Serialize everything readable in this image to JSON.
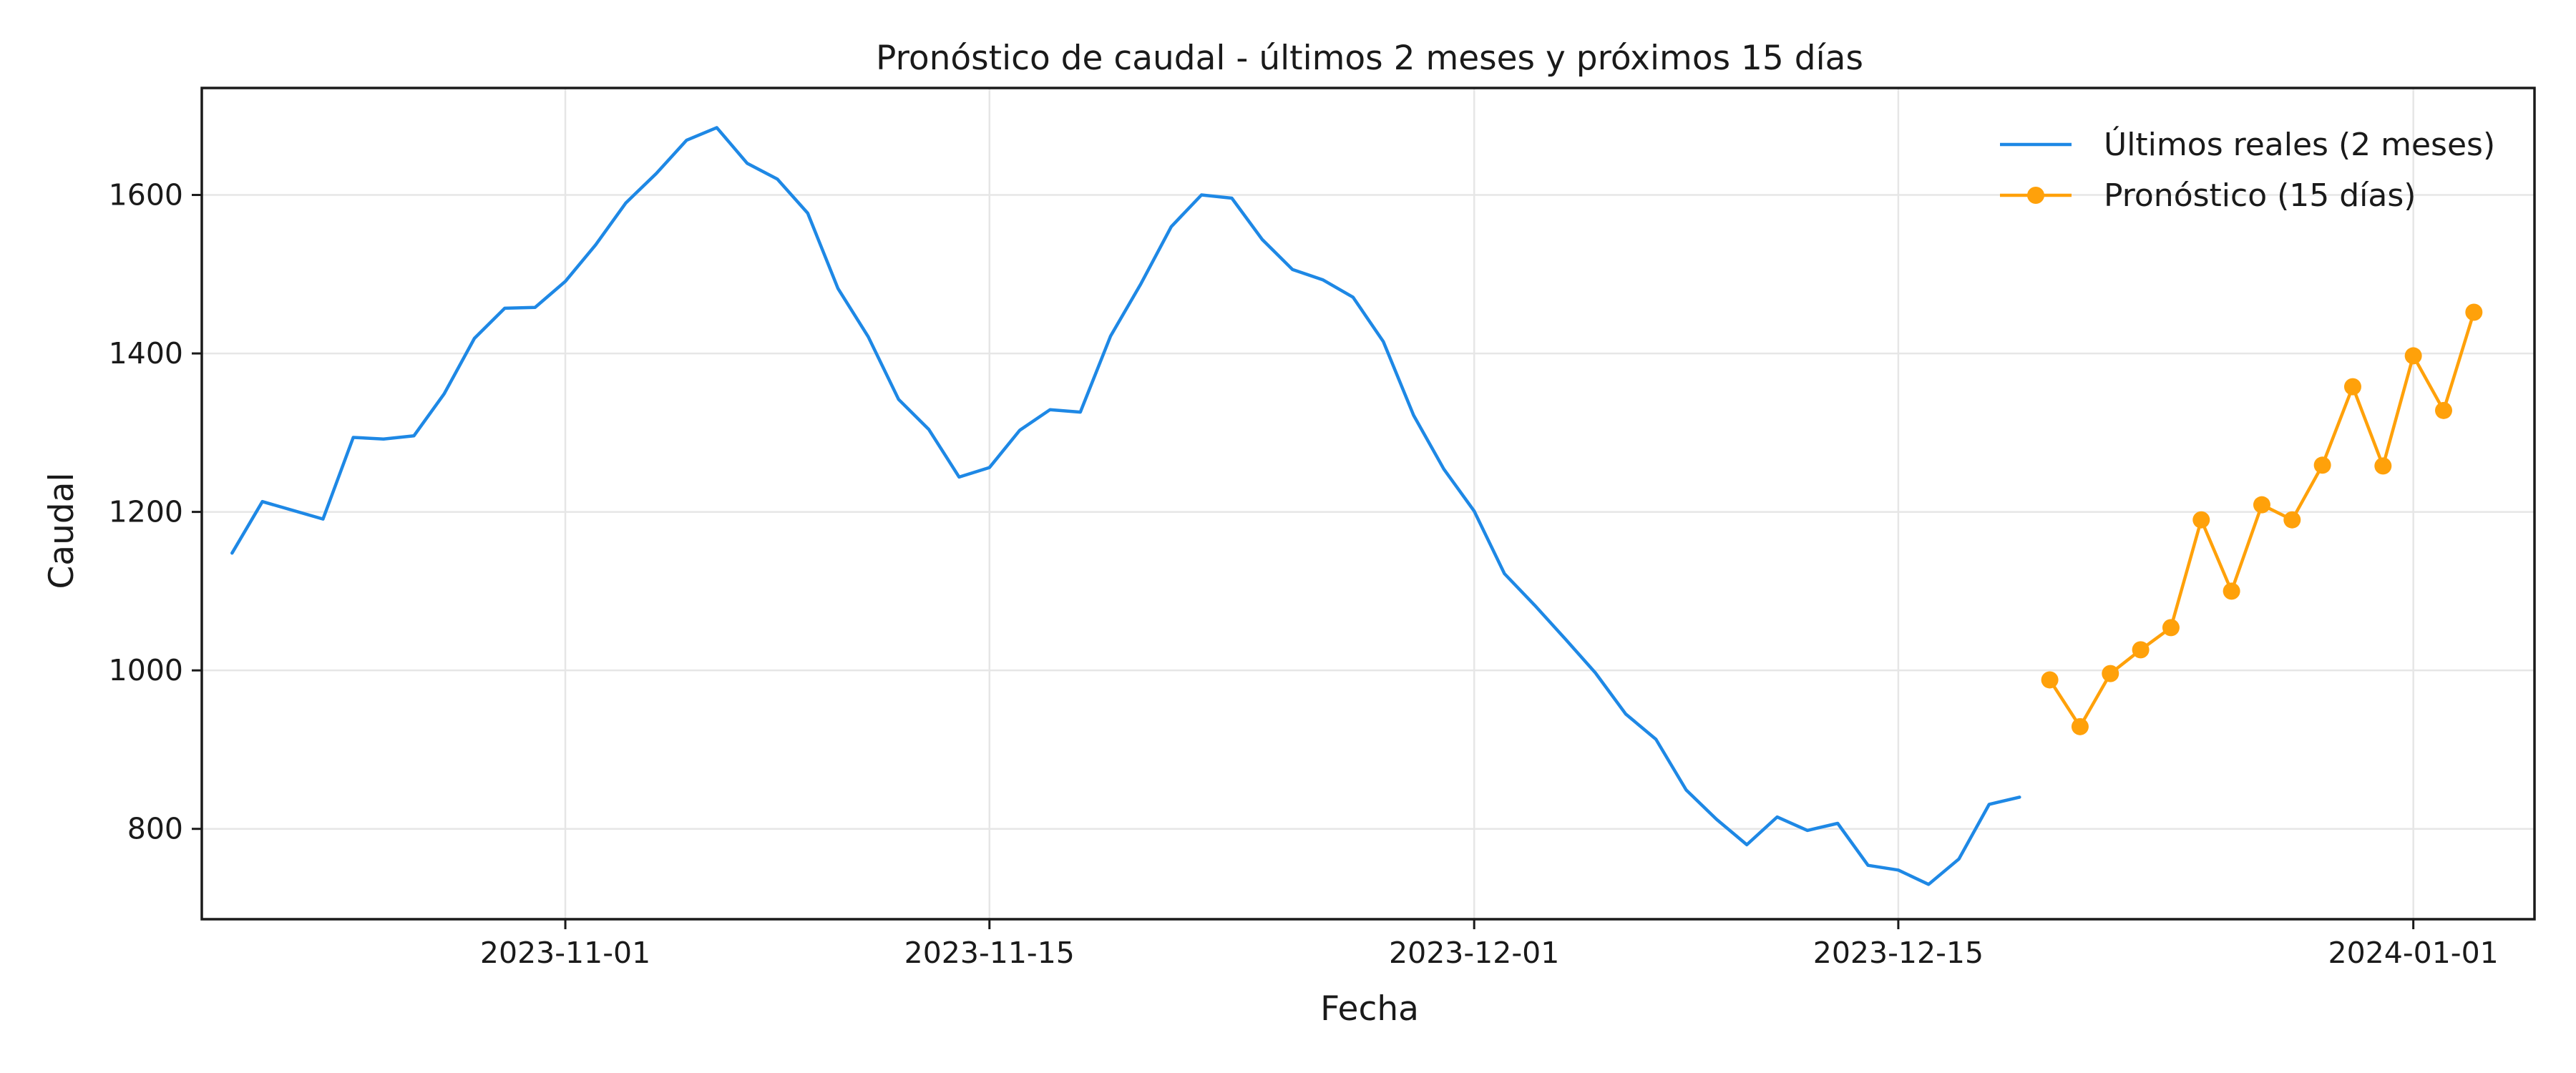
{
  "chart_data": {
    "type": "line",
    "title": "Pronóstico de caudal - últimos 2 meses y próximos 15 días",
    "xlabel": "Fecha",
    "ylabel": "Caudal",
    "x_axis_type": "date",
    "xlim": [
      "2023-10-20",
      "2024-01-05"
    ],
    "ylim": [
      686,
      1735
    ],
    "x_ticks": [
      "2023-11-01",
      "2023-11-15",
      "2023-12-01",
      "2023-12-15",
      "2024-01-01"
    ],
    "y_ticks": [
      800,
      1000,
      1200,
      1400,
      1600
    ],
    "grid": true,
    "legend_position": "top-right",
    "series": [
      {
        "name": "Últimos reales (2 meses)",
        "color": "#1e88e5",
        "marker": "none",
        "x": [
          "2023-10-21",
          "2023-10-22",
          "2023-10-23",
          "2023-10-24",
          "2023-10-25",
          "2023-10-26",
          "2023-10-27",
          "2023-10-28",
          "2023-10-29",
          "2023-10-30",
          "2023-10-31",
          "2023-11-01",
          "2023-11-02",
          "2023-11-03",
          "2023-11-04",
          "2023-11-05",
          "2023-11-06",
          "2023-11-07",
          "2023-11-08",
          "2023-11-09",
          "2023-11-10",
          "2023-11-11",
          "2023-11-12",
          "2023-11-13",
          "2023-11-14",
          "2023-11-15",
          "2023-11-16",
          "2023-11-17",
          "2023-11-18",
          "2023-11-19",
          "2023-11-20",
          "2023-11-21",
          "2023-11-22",
          "2023-11-23",
          "2023-11-24",
          "2023-11-25",
          "2023-11-26",
          "2023-11-27",
          "2023-11-28",
          "2023-11-29",
          "2023-11-30",
          "2023-12-01",
          "2023-12-02",
          "2023-12-03",
          "2023-12-04",
          "2023-12-05",
          "2023-12-06",
          "2023-12-07",
          "2023-12-08",
          "2023-12-09",
          "2023-12-10",
          "2023-12-11",
          "2023-12-12",
          "2023-12-13",
          "2023-12-14",
          "2023-12-15",
          "2023-12-16",
          "2023-12-17",
          "2023-12-18",
          "2023-12-19"
        ],
        "values": [
          1148,
          1213,
          1202,
          1191,
          1294,
          1292,
          1296,
          1349,
          1419,
          1457,
          1458,
          1491,
          1537,
          1590,
          1627,
          1669,
          1685,
          1640,
          1620,
          1577,
          1482,
          1421,
          1342,
          1304,
          1244,
          1256,
          1303,
          1329,
          1326,
          1422,
          1488,
          1560,
          1600,
          1596,
          1544,
          1506,
          1493,
          1471,
          1415,
          1322,
          1254,
          1201,
          1122,
          1082,
          1040,
          997,
          945,
          913,
          849,
          812,
          780,
          815,
          798,
          807,
          754,
          748,
          730,
          762,
          831,
          840
        ]
      },
      {
        "name": "Pronóstico (15 días)",
        "color": "#ffa10a",
        "marker": "circle",
        "x": [
          "2023-12-20",
          "2023-12-21",
          "2023-12-22",
          "2023-12-23",
          "2023-12-24",
          "2023-12-25",
          "2023-12-26",
          "2023-12-27",
          "2023-12-28",
          "2023-12-29",
          "2023-12-30",
          "2023-12-31",
          "2024-01-01",
          "2024-01-02",
          "2024-01-03"
        ],
        "values": [
          988,
          929,
          996,
          1026,
          1054,
          1190,
          1100,
          1209,
          1190,
          1259,
          1358,
          1258,
          1397,
          1328,
          1452
        ]
      }
    ]
  }
}
